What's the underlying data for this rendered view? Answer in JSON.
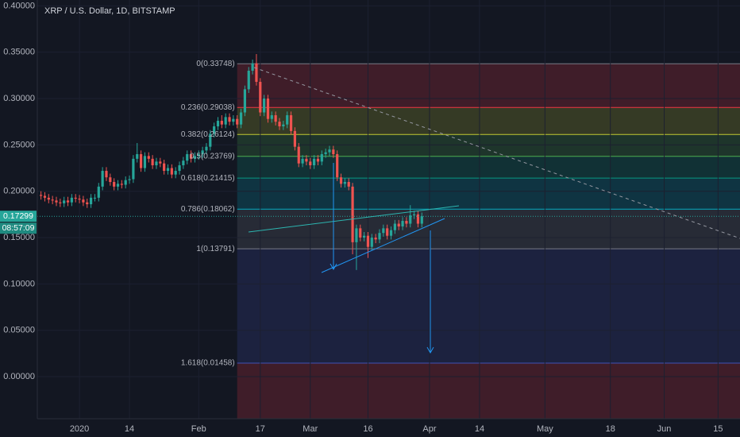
{
  "chart_data": {
    "type": "candlestick",
    "title": "XRP / U.S. Dollar, 1D, BITSTAMP",
    "x": [
      -10,
      -9,
      -8,
      -7,
      -6,
      -5,
      -4,
      -3,
      -2,
      -1,
      0,
      1,
      2,
      3,
      4,
      5,
      6,
      7,
      8,
      9,
      10,
      11,
      12,
      13,
      14,
      15,
      16,
      17,
      18,
      19,
      20,
      21,
      22,
      23,
      24,
      25,
      26,
      27,
      28,
      29,
      30,
      31,
      32,
      33,
      34,
      35,
      36,
      37,
      38,
      39,
      40,
      41,
      42,
      43,
      44,
      45,
      46,
      47,
      48,
      49,
      50,
      51,
      52,
      53,
      54,
      55,
      56,
      57,
      58,
      59,
      60,
      61,
      62,
      63,
      64,
      65,
      66,
      67,
      68,
      69,
      70,
      71,
      72,
      73,
      74,
      75,
      76,
      77,
      78,
      79,
      80,
      81,
      82,
      83,
      84,
      85,
      86,
      87,
      88,
      89
    ],
    "open": [
      0.196,
      0.195,
      0.193,
      0.191,
      0.19,
      0.188,
      0.187,
      0.19,
      0.188,
      0.193,
      0.192,
      0.191,
      0.188,
      0.186,
      0.193,
      0.193,
      0.205,
      0.222,
      0.215,
      0.21,
      0.205,
      0.208,
      0.207,
      0.212,
      0.213,
      0.235,
      0.24,
      0.225,
      0.238,
      0.235,
      0.228,
      0.232,
      0.23,
      0.222,
      0.225,
      0.218,
      0.222,
      0.228,
      0.233,
      0.24,
      0.235,
      0.238,
      0.24,
      0.244,
      0.248,
      0.262,
      0.27,
      0.276,
      0.272,
      0.28,
      0.275,
      0.278,
      0.272,
      0.285,
      0.31,
      0.33,
      0.338,
      0.318,
      0.285,
      0.3,
      0.278,
      0.282,
      0.275,
      0.27,
      0.272,
      0.282,
      0.265,
      0.248,
      0.23,
      0.235,
      0.232,
      0.228,
      0.235,
      0.232,
      0.24,
      0.242,
      0.245,
      0.24,
      0.215,
      0.208,
      0.21,
      0.205,
      0.145,
      0.16,
      0.15,
      0.152,
      0.14,
      0.15,
      0.148,
      0.155,
      0.16,
      0.152,
      0.158,
      0.165,
      0.162,
      0.168,
      0.165,
      0.174,
      0.175,
      0.165
    ],
    "high": [
      0.2,
      0.199,
      0.197,
      0.195,
      0.194,
      0.192,
      0.194,
      0.194,
      0.197,
      0.197,
      0.196,
      0.195,
      0.192,
      0.197,
      0.197,
      0.209,
      0.226,
      0.226,
      0.219,
      0.214,
      0.212,
      0.212,
      0.216,
      0.217,
      0.239,
      0.252,
      0.244,
      0.242,
      0.242,
      0.239,
      0.236,
      0.236,
      0.234,
      0.229,
      0.229,
      0.226,
      0.232,
      0.237,
      0.244,
      0.244,
      0.242,
      0.244,
      0.248,
      0.252,
      0.266,
      0.274,
      0.28,
      0.282,
      0.284,
      0.284,
      0.282,
      0.282,
      0.289,
      0.314,
      0.334,
      0.342,
      0.348,
      0.322,
      0.304,
      0.304,
      0.286,
      0.286,
      0.279,
      0.276,
      0.286,
      0.286,
      0.269,
      0.252,
      0.239,
      0.239,
      0.236,
      0.239,
      0.239,
      0.244,
      0.246,
      0.249,
      0.249,
      0.244,
      0.219,
      0.214,
      0.214,
      0.209,
      0.164,
      0.164,
      0.156,
      0.156,
      0.154,
      0.154,
      0.159,
      0.164,
      0.164,
      0.162,
      0.169,
      0.169,
      0.172,
      0.172,
      0.185,
      0.179,
      0.179,
      0.177
    ],
    "low": [
      0.191,
      0.189,
      0.187,
      0.186,
      0.184,
      0.183,
      0.183,
      0.184,
      0.184,
      0.188,
      0.187,
      0.184,
      0.182,
      0.182,
      0.189,
      0.189,
      0.201,
      0.211,
      0.206,
      0.201,
      0.201,
      0.203,
      0.203,
      0.208,
      0.209,
      0.231,
      0.221,
      0.221,
      0.231,
      0.224,
      0.224,
      0.226,
      0.218,
      0.218,
      0.214,
      0.214,
      0.218,
      0.224,
      0.229,
      0.231,
      0.231,
      0.234,
      0.236,
      0.24,
      0.244,
      0.258,
      0.266,
      0.268,
      0.268,
      0.271,
      0.271,
      0.268,
      0.268,
      0.281,
      0.306,
      0.326,
      0.314,
      0.281,
      0.281,
      0.274,
      0.274,
      0.271,
      0.266,
      0.266,
      0.268,
      0.261,
      0.244,
      0.226,
      0.226,
      0.228,
      0.224,
      0.224,
      0.228,
      0.228,
      0.236,
      0.238,
      0.236,
      0.211,
      0.204,
      0.204,
      0.201,
      0.132,
      0.115,
      0.146,
      0.146,
      0.128,
      0.136,
      0.144,
      0.144,
      0.151,
      0.148,
      0.148,
      0.154,
      0.158,
      0.158,
      0.161,
      0.161,
      0.17,
      0.161,
      0.161
    ],
    "close": [
      0.195,
      0.193,
      0.191,
      0.19,
      0.188,
      0.187,
      0.19,
      0.188,
      0.193,
      0.192,
      0.191,
      0.188,
      0.186,
      0.193,
      0.193,
      0.205,
      0.222,
      0.215,
      0.21,
      0.205,
      0.208,
      0.207,
      0.212,
      0.213,
      0.235,
      0.24,
      0.225,
      0.238,
      0.235,
      0.228,
      0.232,
      0.23,
      0.222,
      0.225,
      0.218,
      0.222,
      0.228,
      0.233,
      0.24,
      0.235,
      0.238,
      0.24,
      0.244,
      0.248,
      0.262,
      0.27,
      0.276,
      0.272,
      0.28,
      0.275,
      0.278,
      0.272,
      0.285,
      0.31,
      0.33,
      0.338,
      0.318,
      0.285,
      0.3,
      0.278,
      0.282,
      0.275,
      0.27,
      0.272,
      0.282,
      0.265,
      0.248,
      0.23,
      0.235,
      0.232,
      0.228,
      0.235,
      0.232,
      0.24,
      0.242,
      0.245,
      0.24,
      0.215,
      0.208,
      0.21,
      0.205,
      0.145,
      0.16,
      0.15,
      0.152,
      0.14,
      0.15,
      0.148,
      0.155,
      0.16,
      0.152,
      0.158,
      0.165,
      0.162,
      0.168,
      0.165,
      0.174,
      0.175,
      0.165,
      0.173
    ],
    "up_color": "#26a69a",
    "down_color": "#ef5350",
    "xlim": [
      -10.95,
      171.7
    ],
    "xticks": [
      {
        "value": 0,
        "label": "2020"
      },
      {
        "value": 13,
        "label": "14"
      },
      {
        "value": 31,
        "label": "Feb"
      },
      {
        "value": 47,
        "label": "17"
      },
      {
        "value": 60,
        "label": "Mar"
      },
      {
        "value": 75,
        "label": "16"
      },
      {
        "value": 91,
        "label": "Apr"
      },
      {
        "value": 104,
        "label": "14"
      },
      {
        "value": 121,
        "label": "May"
      },
      {
        "value": 138,
        "label": "18"
      },
      {
        "value": 152,
        "label": "Jun"
      },
      {
        "value": 166,
        "label": "15"
      }
    ],
    "ylim": [
      -0.0454,
      0.4063
    ],
    "yticks": [
      {
        "value": 0,
        "label": "0.00000"
      },
      {
        "value": 0.05,
        "label": "0.05000"
      },
      {
        "value": 0.1,
        "label": "0.10000"
      },
      {
        "value": 0.15,
        "label": "0.15000"
      },
      {
        "value": 0.2,
        "label": "0.20000"
      },
      {
        "value": 0.25,
        "label": "0.25000"
      },
      {
        "value": 0.3,
        "label": "0.30000"
      },
      {
        "value": 0.35,
        "label": "0.35000"
      },
      {
        "value": 0.4,
        "label": "0.40000"
      }
    ],
    "grid": true,
    "last_price": 0.17299,
    "countdown": "08:57:09",
    "fib": {
      "x_start": 41,
      "levels": [
        {
          "value": 0.33748,
          "label": "0(0.33748)",
          "color": "#787b86"
        },
        {
          "value": 0.29038,
          "label": "0.236(0.29038)",
          "color": "#f23645"
        },
        {
          "value": 0.26124,
          "label": "0.382(0.26124)",
          "color": "#c0ca33"
        },
        {
          "value": 0.23769,
          "label": "0.5(0.23769)",
          "color": "#4caf50"
        },
        {
          "value": 0.21415,
          "label": "0.618(0.21415)",
          "color": "#089981"
        },
        {
          "value": 0.18062,
          "label": "0.786(0.18062)",
          "color": "#00acc1"
        },
        {
          "value": 0.13791,
          "label": "1(0.13791)",
          "color": "#787b86"
        },
        {
          "value": 0.01458,
          "label": "1.618(0.01458)",
          "color": "#3f51b5"
        }
      ],
      "extension_color": "#f23645"
    }
  }
}
